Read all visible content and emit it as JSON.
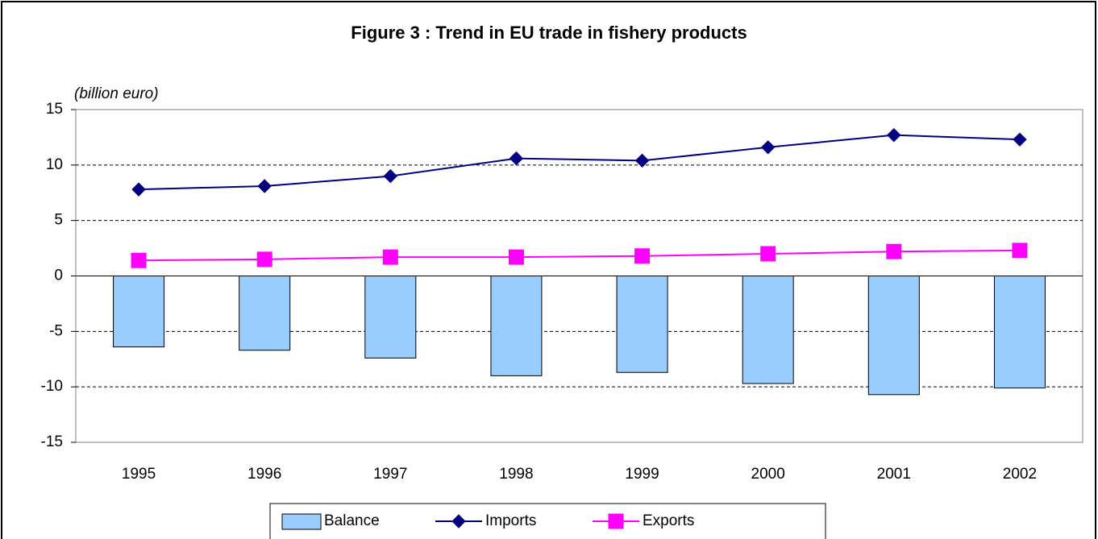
{
  "chart_data": {
    "type": "combo",
    "title": "Figure 3 : Trend in EU trade in fishery products",
    "y_axis_label": "(billion euro)",
    "categories": [
      "1995",
      "1996",
      "1997",
      "1998",
      "1999",
      "2000",
      "2001",
      "2002"
    ],
    "series": [
      {
        "name": "Balance",
        "type": "bar",
        "color": "#99ccff",
        "values": [
          -6.4,
          -6.7,
          -7.4,
          -9.0,
          -8.7,
          -9.7,
          -10.7,
          -10.1
        ]
      },
      {
        "name": "Imports",
        "type": "line",
        "marker": "diamond",
        "color": "#000080",
        "values": [
          7.8,
          8.1,
          9.0,
          10.6,
          10.4,
          11.6,
          12.7,
          12.3
        ]
      },
      {
        "name": "Exports",
        "type": "line",
        "marker": "square",
        "color": "#ff00ff",
        "values": [
          1.4,
          1.5,
          1.7,
          1.7,
          1.8,
          2.0,
          2.2,
          2.3
        ]
      }
    ],
    "ylim": [
      -15,
      15
    ],
    "yticks": [
      -15,
      -10,
      -5,
      0,
      5,
      10,
      15
    ],
    "grid": true,
    "legend": "bottom"
  }
}
